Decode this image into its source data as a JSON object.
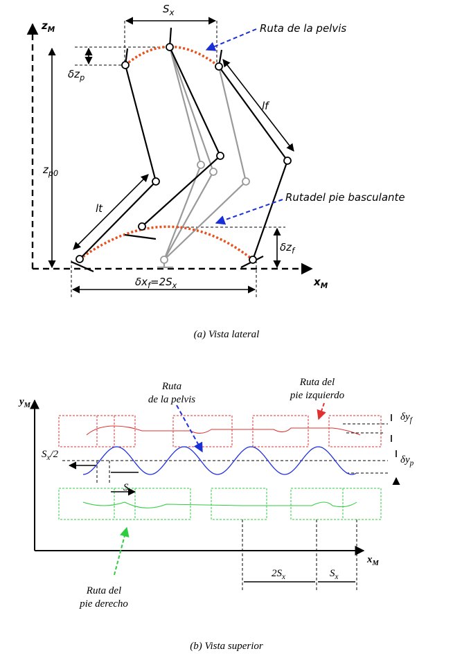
{
  "lateral": {
    "labels": {
      "z_axis": [
        "z",
        "M"
      ],
      "stride": [
        "S",
        "x"
      ],
      "pelvis_route": [
        "Ruta de la pelvis"
      ],
      "dz_p": [
        "δz",
        "p"
      ],
      "lf": [
        "lf"
      ],
      "z_p0": [
        "z",
        "p0"
      ],
      "lt": [
        "lt"
      ],
      "swing_route": [
        "Rutadel pie basculante"
      ],
      "dz_f": [
        "δz",
        "f"
      ],
      "x_axis": [
        "x",
        "M"
      ],
      "dx_f": [
        "δx",
        "f",
        "=2S",
        "x"
      ]
    },
    "caption": "(a) Vista lateral"
  },
  "superior": {
    "labels": {
      "y_axis": [
        "y",
        "M"
      ],
      "dy_f": [
        "δy",
        "f"
      ],
      "half_stride": [
        "S",
        "x",
        "/2"
      ],
      "dy_p": [
        "δy",
        "p"
      ],
      "stride": [
        "S",
        "x"
      ],
      "x_axis": [
        "x",
        "M"
      ],
      "double_stride": [
        "2S",
        "x"
      ],
      "stride_right": [
        "S",
        "x"
      ]
    },
    "pelvis_route": [
      "Ruta",
      "de la pelvis"
    ],
    "left_route": [
      "Ruta del",
      "pie izquierdo"
    ],
    "right_route": [
      "Ruta del",
      "pie derecho"
    ],
    "caption": "(b) Vista superior"
  }
}
